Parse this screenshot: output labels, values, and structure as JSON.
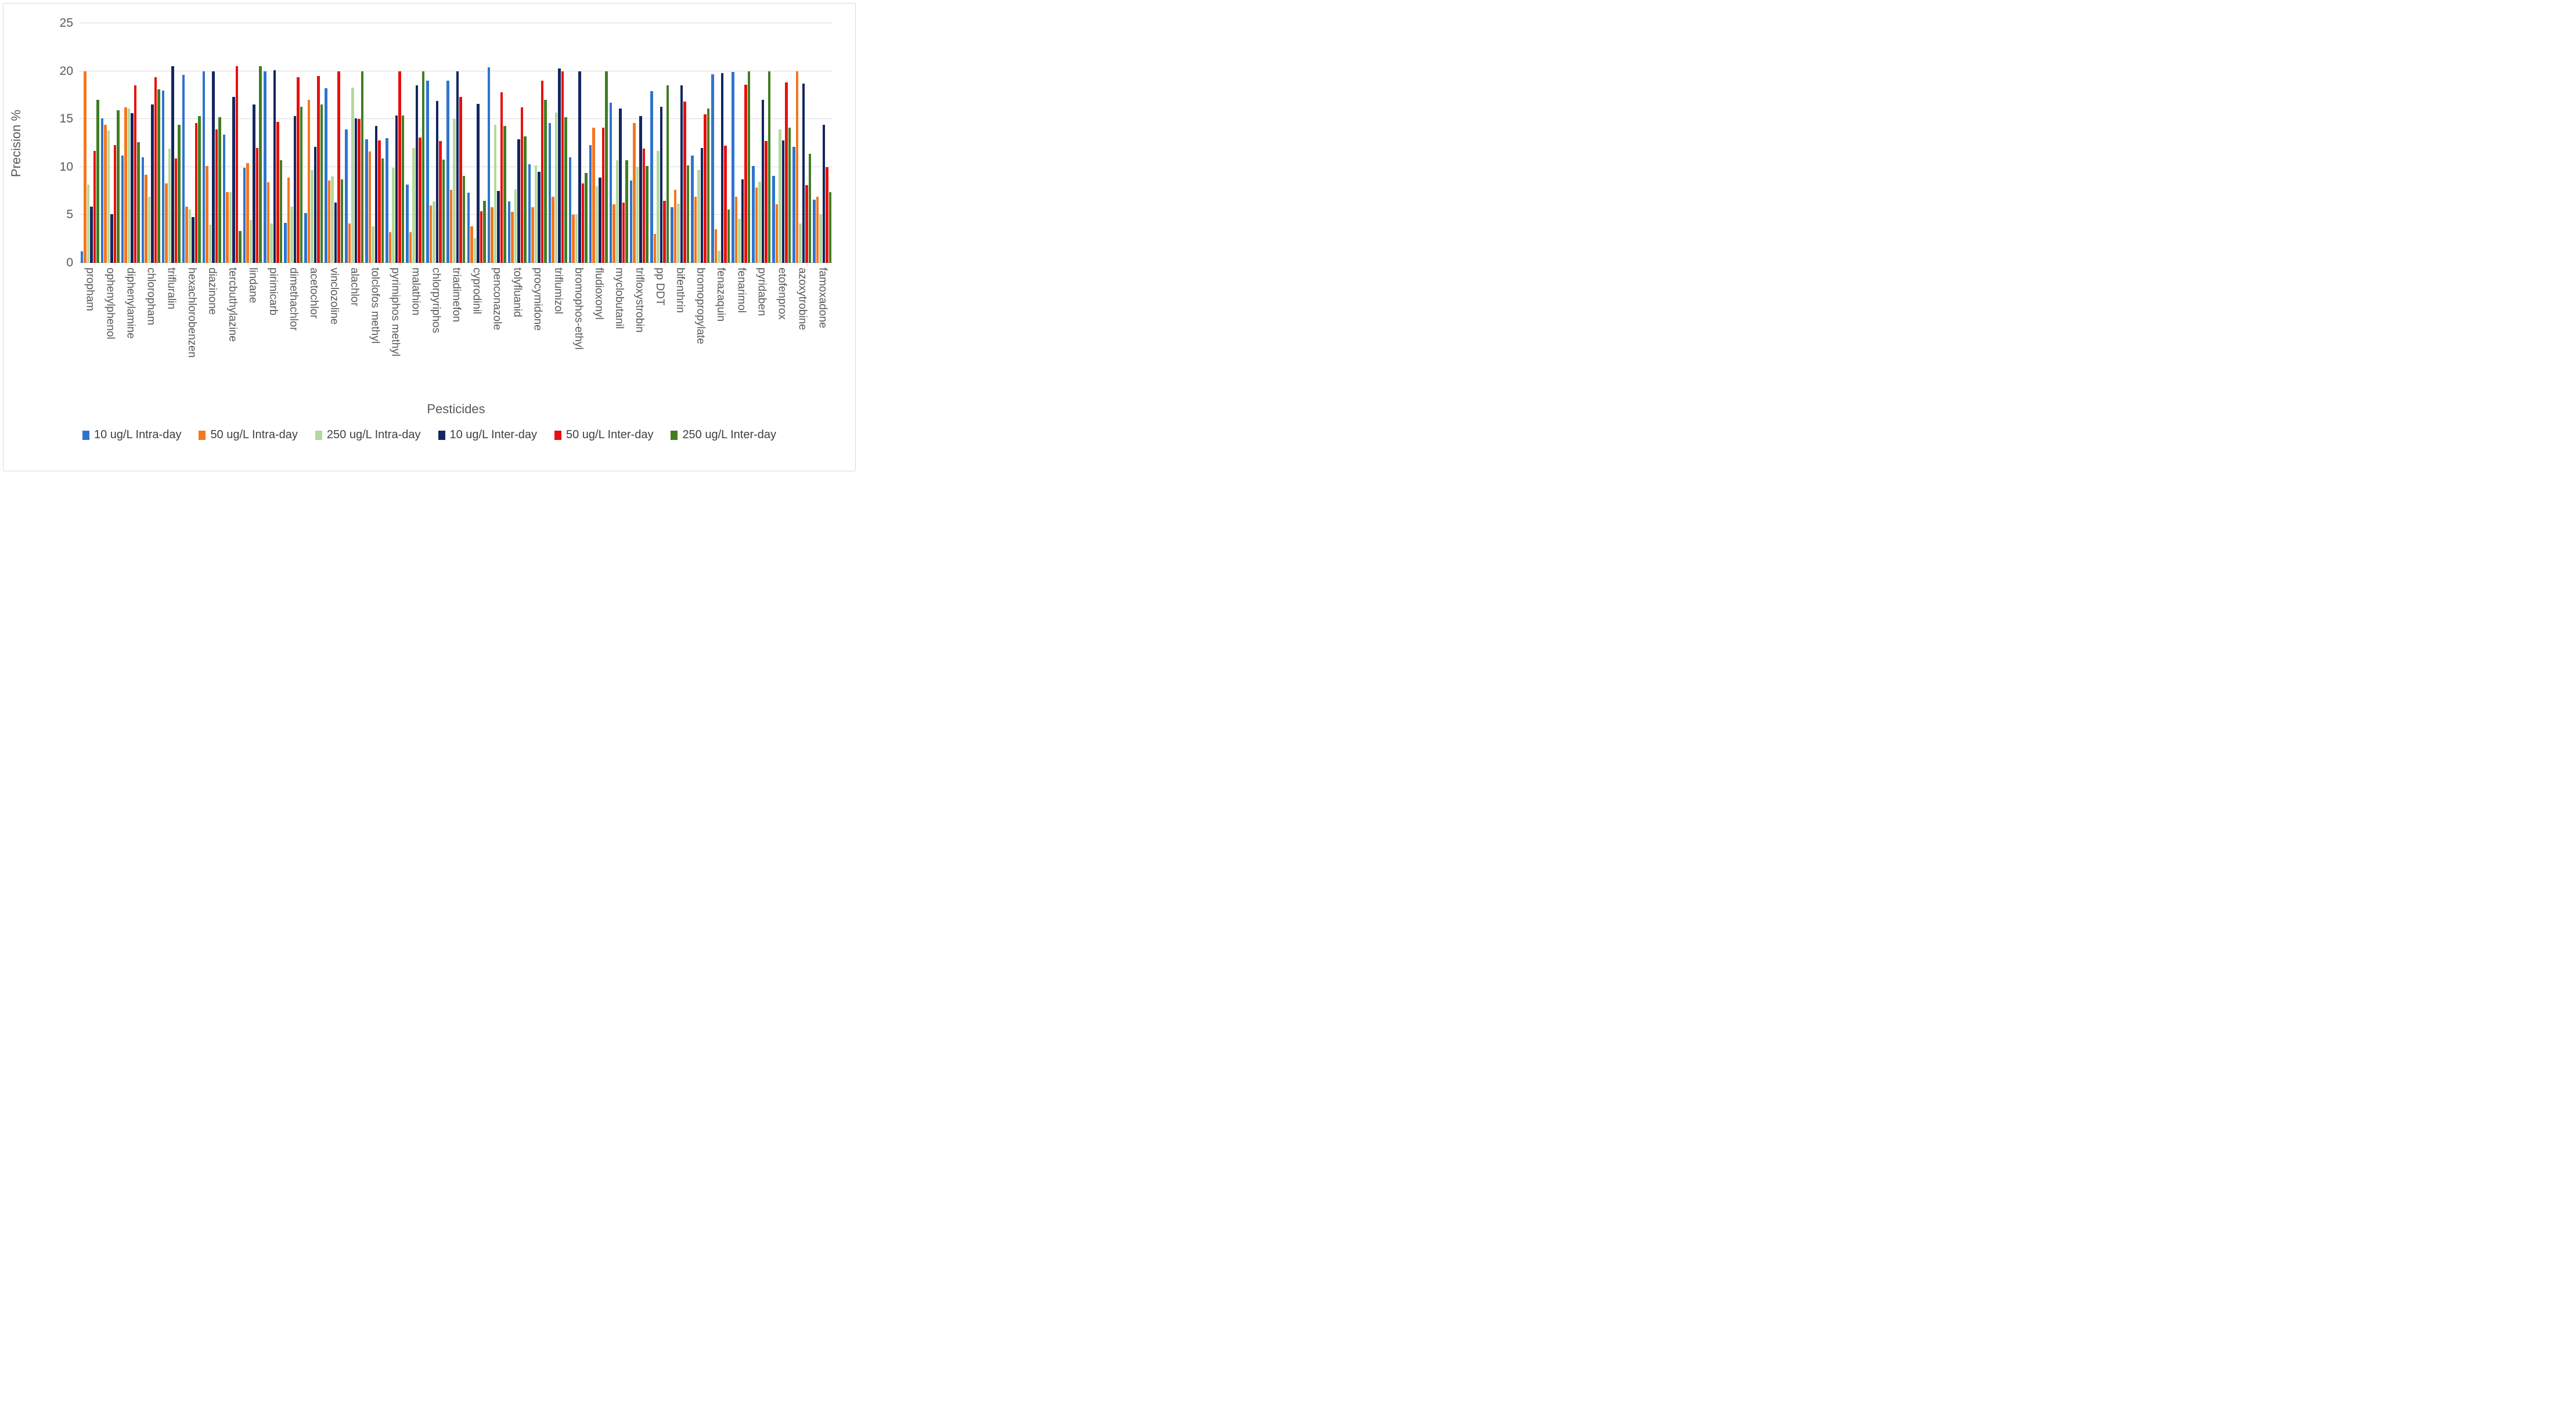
{
  "figure": {
    "background": "#FFFFFF",
    "border_color": "#D9D9D9",
    "gridline_color": "#D9D9D9",
    "axis_line_color": "#BFBFBF",
    "axis_text_color": "#595959",
    "legend_text_color": "#404040"
  },
  "chart_data": {
    "type": "bar",
    "title": "",
    "ylabel": "Precision %",
    "xlabel": "Pesticides",
    "ylim": [
      0,
      25
    ],
    "yticks": [
      0,
      5,
      10,
      15,
      20,
      25
    ],
    "grid": true,
    "legend_position": "bottom",
    "categories": [
      "propham",
      "ophenylphenol",
      "diphenylamine",
      "chloropham",
      "trifluralin",
      "hexachlorobenzen",
      "diazinone",
      "tercbuthylazine",
      "lindane",
      "pirimicarb",
      "dimethachlor",
      "acetochlor",
      "vinclozoline",
      "alachlor",
      "tolclofos methyl",
      "pyrimiphos methyl",
      "malathion",
      "chlorpyriphos",
      "triadimefon",
      "cyprodinil",
      "penconazole",
      "tolyfluanid",
      "procymidone",
      "triflumizol",
      "bromophos-ethyl",
      "fludioxonyl",
      "myclobutanil",
      "trifloxystrobin",
      "pp DDT",
      "bifenthrin",
      "bromopropylate",
      "fenazaquin",
      "fenarimol",
      "pyridaben",
      "etofenprox",
      "azoxytrobine",
      "famoxadone"
    ],
    "series": [
      {
        "name": "10 ug/L Intra-day",
        "color": "#2E74CE",
        "values": [
          1.2,
          15.1,
          11.2,
          11.0,
          18.0,
          19.6,
          20.0,
          13.4,
          9.9,
          20.0,
          4.2,
          5.2,
          18.2,
          13.9,
          12.9,
          13.0,
          8.2,
          19.0,
          19.0,
          7.3,
          20.4,
          6.4,
          10.3,
          14.6,
          11.0,
          12.3,
          16.7,
          8.6,
          17.9,
          5.8,
          11.2,
          19.7,
          19.9,
          10.1,
          9.1,
          12.1,
          6.6
        ]
      },
      {
        "name": "50 ug/L Intra-day",
        "color": "#F5761D",
        "values": [
          20.0,
          14.4,
          16.2,
          9.2,
          8.3,
          5.9,
          10.1,
          7.4,
          10.4,
          8.4,
          8.9,
          17.0,
          8.6,
          4.1,
          11.6,
          3.2,
          3.2,
          6.0,
          7.6,
          3.8,
          5.8,
          5.3,
          5.8,
          6.9,
          5.0,
          14.1,
          6.1,
          14.6,
          3.0,
          7.6,
          6.9,
          3.5,
          6.9,
          7.9,
          6.1,
          20.0,
          6.9
        ]
      },
      {
        "name": "250 ug/L Intra-day",
        "color": "#B4D99B",
        "values": [
          8.2,
          13.8,
          16.1,
          6.9,
          11.9,
          5.6,
          4.0,
          7.4,
          4.5,
          4.1,
          5.9,
          9.7,
          9.0,
          18.3,
          3.8,
          9.9,
          12.0,
          6.4,
          15.0,
          2.6,
          14.4,
          7.7,
          10.2,
          15.7,
          5.1,
          8.0,
          10.7,
          10.0,
          11.7,
          6.2,
          9.7,
          1.3,
          4.6,
          8.5,
          13.9,
          4.1,
          5.1
        ]
      },
      {
        "name": "10 ug/L Inter-day",
        "color": "#13265F",
        "values": [
          5.9,
          5.1,
          15.6,
          16.5,
          20.5,
          4.8,
          20.0,
          17.3,
          16.5,
          20.1,
          15.3,
          12.1,
          6.3,
          15.1,
          14.3,
          15.4,
          18.5,
          16.9,
          20.0,
          16.6,
          7.5,
          12.9,
          9.5,
          20.3,
          20.0,
          8.9,
          16.1,
          15.3,
          16.3,
          18.5,
          12.0,
          19.8,
          8.7,
          17.0,
          12.8,
          18.7,
          14.4
        ]
      },
      {
        "name": "50 ug/L Inter-day",
        "color": "#E8100C",
        "values": [
          11.7,
          12.3,
          18.5,
          19.4,
          10.9,
          14.6,
          13.9,
          20.5,
          12.0,
          14.7,
          19.4,
          19.5,
          20.0,
          15.0,
          12.8,
          20.0,
          13.1,
          12.7,
          17.3,
          5.4,
          17.8,
          16.2,
          19.0,
          20.0,
          8.3,
          14.1,
          6.3,
          11.9,
          6.5,
          16.8,
          15.5,
          12.2,
          18.6,
          12.7,
          18.8,
          8.1,
          10.0
        ]
      },
      {
        "name": "250 ug/L Inter-day",
        "color": "#417D22",
        "values": [
          17.0,
          15.9,
          12.6,
          18.1,
          14.4,
          15.3,
          15.2,
          3.3,
          20.5,
          10.7,
          16.3,
          16.5,
          8.7,
          20.0,
          10.9,
          15.4,
          20.0,
          10.8,
          9.1,
          6.5,
          14.3,
          13.2,
          17.0,
          15.2,
          9.4,
          20.0,
          10.7,
          10.1,
          18.5,
          10.2,
          16.1,
          5.6,
          20.0,
          20.0,
          14.1,
          11.4,
          7.4
        ]
      }
    ]
  }
}
